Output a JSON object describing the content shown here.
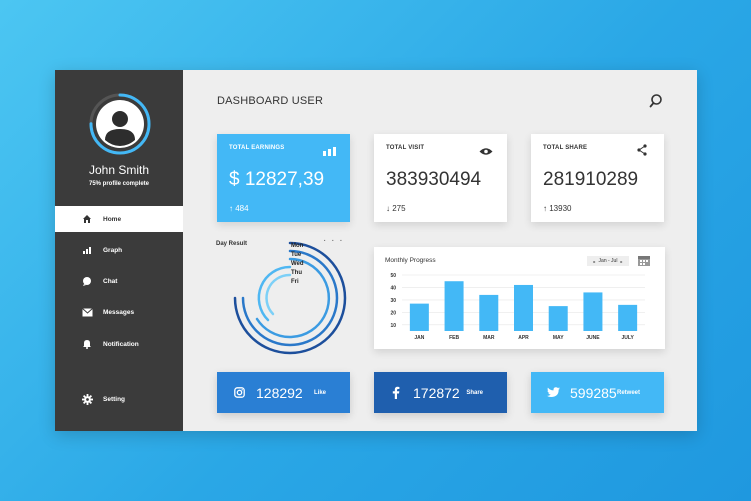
{
  "sidebar": {
    "user_name": "John Smith",
    "profile_status": "75% profile complete",
    "profile_progress": 0.75,
    "items": [
      {
        "label": "Home",
        "icon": "home-icon",
        "active": true
      },
      {
        "label": "Graph",
        "icon": "bar-chart-icon",
        "active": false
      },
      {
        "label": "Chat",
        "icon": "chat-bubble-icon",
        "active": false
      },
      {
        "label": "Messages",
        "icon": "envelope-icon",
        "active": false
      },
      {
        "label": "Notification",
        "icon": "bell-icon",
        "active": false
      }
    ],
    "setting": {
      "label": "Setting",
      "icon": "gear-icon"
    }
  },
  "header": {
    "title": "DASHBOARD USER",
    "search_icon": "search-icon"
  },
  "stats": [
    {
      "label": "TOTAL EARNINGS",
      "value": "$ 12827,39",
      "delta": "484",
      "direction": "up",
      "icon": "bar-chart-icon"
    },
    {
      "label": "TOTAL VISIT",
      "value": "383930494",
      "delta": "275",
      "direction": "down",
      "icon": "eye-icon"
    },
    {
      "label": "TOTAL SHARE",
      "value": "281910289",
      "delta": "13930",
      "direction": "up",
      "icon": "share-icon"
    }
  ],
  "day_result": {
    "title": "Day Result",
    "menu": "· · ·",
    "days": [
      "Mon",
      "Tue",
      "Wed",
      "Thu",
      "Fri"
    ]
  },
  "monthly": {
    "title": "Monthly Progress",
    "range": "Jan - Jul",
    "calendar_icon": "calendar-icon"
  },
  "chart_data": {
    "type": "bar",
    "title": "Monthly Progress",
    "categories": [
      "JAN",
      "FEB",
      "MAR",
      "APR",
      "MAY",
      "JUNE",
      "JULY"
    ],
    "values": [
      27,
      45,
      34,
      42,
      25,
      36,
      26
    ],
    "yticks": [
      10,
      20,
      30,
      40,
      50
    ],
    "ylim": [
      5,
      50
    ],
    "grid": true,
    "color": "#43b8f6"
  },
  "social": [
    {
      "icon": "instagram-icon",
      "count": "128292",
      "action": "Like",
      "color": "#2a7fd4"
    },
    {
      "icon": "facebook-icon",
      "count": "172872",
      "action": "Share",
      "color": "#1f5fae"
    },
    {
      "icon": "twitter-icon",
      "count": "599285",
      "action": "Retweet",
      "color": "#43b8f6"
    }
  ]
}
